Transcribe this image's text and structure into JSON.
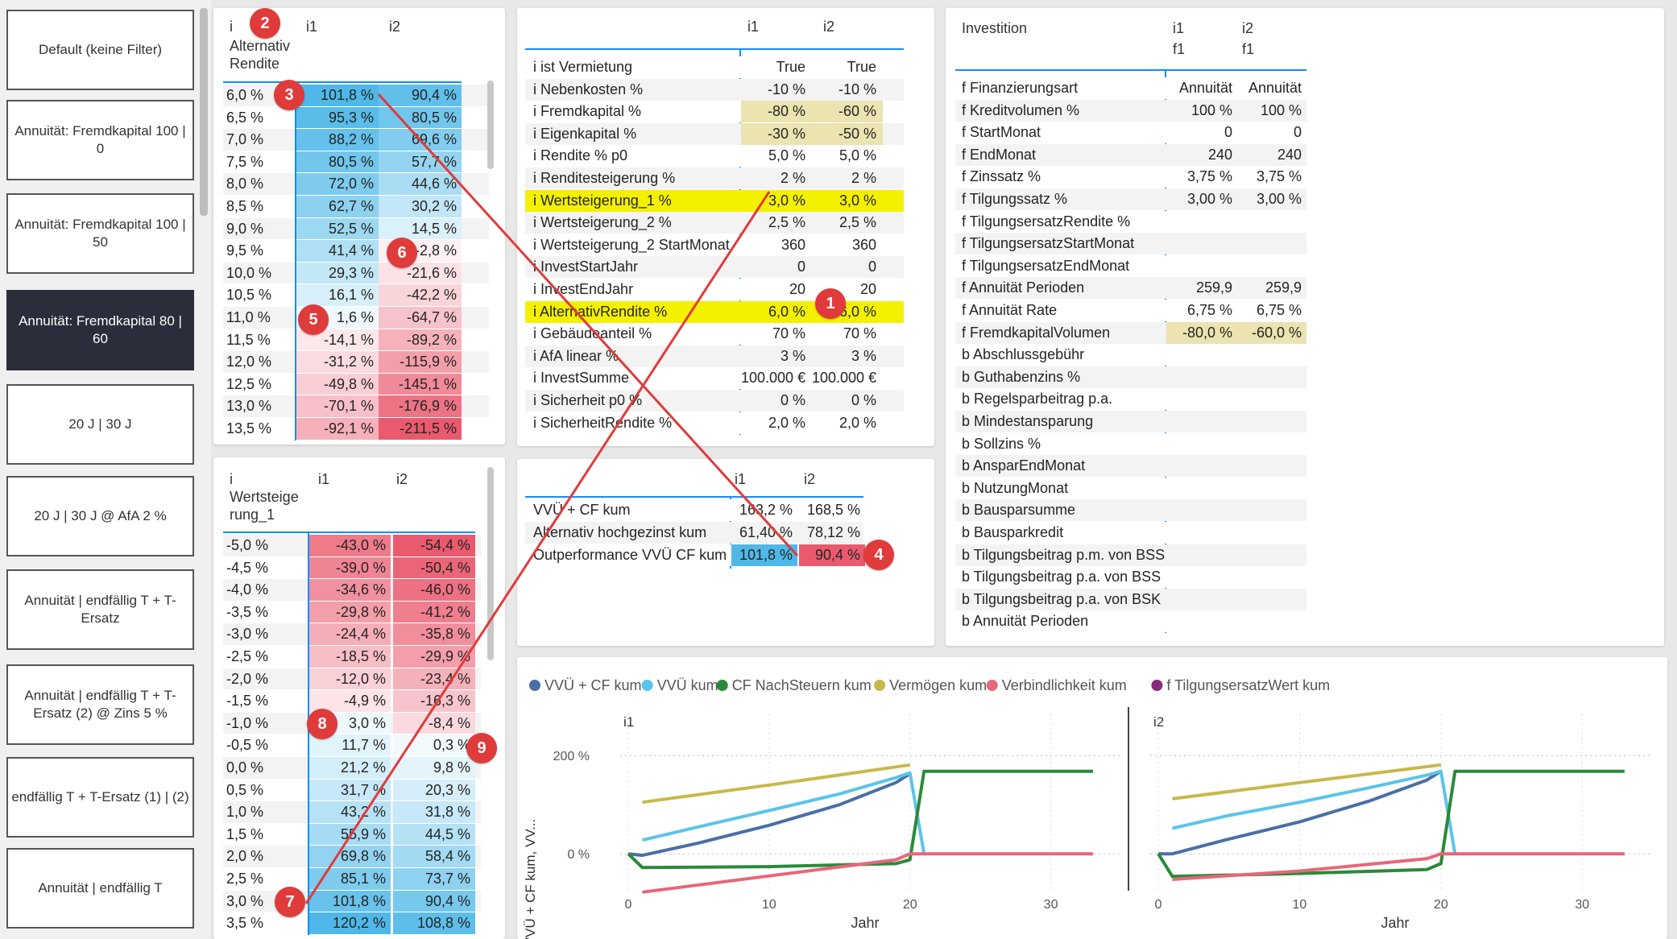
{
  "slicer": {
    "buttons": [
      {
        "label": "Default (keine Filter)",
        "selected": false
      },
      {
        "label": "Annuität: Fremdkapital 100 | 0",
        "selected": false
      },
      {
        "label": "Annuität: Fremdkapital 100 | 50",
        "selected": false
      },
      {
        "label": "Annuität: Fremdkapital 80 | 60",
        "selected": true
      },
      {
        "label": "20 J | 30 J",
        "selected": false
      },
      {
        "label": "20 J | 30 J @ AfA 2 %",
        "selected": false
      },
      {
        "label": "Annuität | endfällig T + T-Ersatz",
        "selected": false
      },
      {
        "label": "Annuität | endfällig T + T-Ersatz (2) @ Zins 5 %",
        "selected": false
      },
      {
        "label": "endfällig T + T-Ersatz (1) | (2)",
        "selected": false
      },
      {
        "label": "Annuität | endfällig T",
        "selected": false
      }
    ]
  },
  "matrix1": {
    "header_prefix": "i",
    "header_row_label": "Alternativ Rendite",
    "columns": [
      "i1",
      "i2"
    ],
    "rows": [
      {
        "label": "6,0 %",
        "i1": "101,8 %",
        "i2": "90,4 %",
        "v1": 101.8,
        "v2": 90.4
      },
      {
        "label": "6,5 %",
        "i1": "95,3 %",
        "i2": "80,5 %",
        "v1": 95.3,
        "v2": 80.5
      },
      {
        "label": "7,0 %",
        "i1": "88,2 %",
        "i2": "69,6 %",
        "v1": 88.2,
        "v2": 69.6
      },
      {
        "label": "7,5 %",
        "i1": "80,5 %",
        "i2": "57,7 %",
        "v1": 80.5,
        "v2": 57.7
      },
      {
        "label": "8,0 %",
        "i1": "72,0 %",
        "i2": "44,6 %",
        "v1": 72.0,
        "v2": 44.6
      },
      {
        "label": "8,5 %",
        "i1": "62,7 %",
        "i2": "30,2 %",
        "v1": 62.7,
        "v2": 30.2
      },
      {
        "label": "9,0 %",
        "i1": "52,5 %",
        "i2": "14,5 %",
        "v1": 52.5,
        "v2": 14.5
      },
      {
        "label": "9,5 %",
        "i1": "41,4 %",
        "i2": "-2,8 %",
        "v1": 41.4,
        "v2": -2.8
      },
      {
        "label": "10,0 %",
        "i1": "29,3 %",
        "i2": "-21,6 %",
        "v1": 29.3,
        "v2": -21.6
      },
      {
        "label": "10,5 %",
        "i1": "16,1 %",
        "i2": "-42,2 %",
        "v1": 16.1,
        "v2": -42.2
      },
      {
        "label": "11,0 %",
        "i1": "1,6 %",
        "i2": "-64,7 %",
        "v1": 1.6,
        "v2": -64.7
      },
      {
        "label": "11,5 %",
        "i1": "-14,1 %",
        "i2": "-89,2 %",
        "v1": -14.1,
        "v2": -89.2
      },
      {
        "label": "12,0 %",
        "i1": "-31,2 %",
        "i2": "-115,9 %",
        "v1": -31.2,
        "v2": -115.9
      },
      {
        "label": "12,5 %",
        "i1": "-49,8 %",
        "i2": "-145,1 %",
        "v1": -49.8,
        "v2": -145.1
      },
      {
        "label": "13,0 %",
        "i1": "-70,1 %",
        "i2": "-176,9 %",
        "v1": -70.1,
        "v2": -176.9
      },
      {
        "label": "13,5 %",
        "i1": "-92,1 %",
        "i2": "-211,5 %",
        "v1": -92.1,
        "v2": -211.5
      }
    ]
  },
  "matrix2": {
    "header_prefix": "i",
    "header_row_label": "Wertsteige rung_1",
    "columns": [
      "i1",
      "i2"
    ],
    "rows": [
      {
        "label": "-5,0 %",
        "i1": "-43,0 %",
        "i2": "-54,4 %",
        "v1": -43.0,
        "v2": -54.4
      },
      {
        "label": "-4,5 %",
        "i1": "-39,0 %",
        "i2": "-50,4 %",
        "v1": -39.0,
        "v2": -50.4
      },
      {
        "label": "-4,0 %",
        "i1": "-34,6 %",
        "i2": "-46,0 %",
        "v1": -34.6,
        "v2": -46.0
      },
      {
        "label": "-3,5 %",
        "i1": "-29,8 %",
        "i2": "-41,2 %",
        "v1": -29.8,
        "v2": -41.2
      },
      {
        "label": "-3,0 %",
        "i1": "-24,4 %",
        "i2": "-35,8 %",
        "v1": -24.4,
        "v2": -35.8
      },
      {
        "label": "-2,5 %",
        "i1": "-18,5 %",
        "i2": "-29,9 %",
        "v1": -18.5,
        "v2": -29.9
      },
      {
        "label": "-2,0 %",
        "i1": "-12,0 %",
        "i2": "-23,4 %",
        "v1": -12.0,
        "v2": -23.4
      },
      {
        "label": "-1,5 %",
        "i1": "-4,9 %",
        "i2": "-16,3 %",
        "v1": -4.9,
        "v2": -16.3
      },
      {
        "label": "-1,0 %",
        "i1": "3,0 %",
        "i2": "-8,4 %",
        "v1": 3.0,
        "v2": -8.4
      },
      {
        "label": "-0,5 %",
        "i1": "11,7 %",
        "i2": "0,3 %",
        "v1": 11.7,
        "v2": 0.3
      },
      {
        "label": "0,0 %",
        "i1": "21,2 %",
        "i2": "9,8 %",
        "v1": 21.2,
        "v2": 9.8
      },
      {
        "label": "0,5 %",
        "i1": "31,7 %",
        "i2": "20,3 %",
        "v1": 31.7,
        "v2": 20.3
      },
      {
        "label": "1,0 %",
        "i1": "43,2 %",
        "i2": "31,8 %",
        "v1": 43.2,
        "v2": 31.8
      },
      {
        "label": "1,5 %",
        "i1": "55,9 %",
        "i2": "44,5 %",
        "v1": 55.9,
        "v2": 44.5
      },
      {
        "label": "2,0 %",
        "i1": "69,8 %",
        "i2": "58,4 %",
        "v1": 69.8,
        "v2": 58.4
      },
      {
        "label": "2,5 %",
        "i1": "85,1 %",
        "i2": "73,7 %",
        "v1": 85.1,
        "v2": 73.7
      },
      {
        "label": "3,0 %",
        "i1": "101,8 %",
        "i2": "90,4 %",
        "v1": 101.8,
        "v2": 90.4
      },
      {
        "label": "3,5 %",
        "i1": "120,2 %",
        "i2": "108,8 %",
        "v1": 120.2,
        "v2": 108.8
      }
    ]
  },
  "params": {
    "columns": [
      "i1",
      "i2"
    ],
    "rows": [
      {
        "label": "i ist Vermietung",
        "i1": "True",
        "i2": "True",
        "hl": ""
      },
      {
        "label": "i Nebenkosten %",
        "i1": "-10 %",
        "i2": "-10 %",
        "hl": ""
      },
      {
        "label": "i Fremdkapital %",
        "i1": "-80 %",
        "i2": "-60 %",
        "hl": "cells"
      },
      {
        "label": "i Eigenkapital %",
        "i1": "-30 %",
        "i2": "-50 %",
        "hl": "cells"
      },
      {
        "label": "i Rendite % p0",
        "i1": "5,0 %",
        "i2": "5,0 %",
        "hl": ""
      },
      {
        "label": "i Renditesteigerung %",
        "i1": "2 %",
        "i2": "2 %",
        "hl": ""
      },
      {
        "label": "i Wertsteigerung_1 %",
        "i1": "3,0 %",
        "i2": "3,0 %",
        "hl": "row"
      },
      {
        "label": "i Wertsteigerung_2 %",
        "i1": "2,5 %",
        "i2": "2,5 %",
        "hl": ""
      },
      {
        "label": "i Wertsteigerung_2 StartMonat",
        "i1": "360",
        "i2": "360",
        "hl": ""
      },
      {
        "label": "i InvestStartJahr",
        "i1": "0",
        "i2": "0",
        "hl": ""
      },
      {
        "label": "i InvestEndJahr",
        "i1": "20",
        "i2": "20",
        "hl": ""
      },
      {
        "label": "i AlternativRendite %",
        "i1": "6,0 %",
        "i2": "6,0 %",
        "hl": "row"
      },
      {
        "label": "i Gebäudeanteil %",
        "i1": "70 %",
        "i2": "70 %",
        "hl": ""
      },
      {
        "label": "i AfA linear %",
        "i1": "3 %",
        "i2": "3 %",
        "hl": ""
      },
      {
        "label": "i InvestSumme",
        "i1": "100.000 €",
        "i2": "100.000 €",
        "hl": ""
      },
      {
        "label": "i Sicherheit p0 %",
        "i1": "0 %",
        "i2": "0 %",
        "hl": ""
      },
      {
        "label": "i SicherheitRendite %",
        "i1": "2,0 %",
        "i2": "2,0 %",
        "hl": ""
      }
    ]
  },
  "financing": {
    "title": "Investition",
    "columns": [
      "i1",
      "i2"
    ],
    "subcolumns": [
      "f1",
      "f1"
    ],
    "rows": [
      {
        "label": "f Finanzierungsart",
        "i1": "Annuität",
        "i2": "Annuität",
        "hl": false
      },
      {
        "label": "f Kreditvolumen %",
        "i1": "100 %",
        "i2": "100 %",
        "hl": false
      },
      {
        "label": "f StartMonat",
        "i1": "0",
        "i2": "0",
        "hl": false
      },
      {
        "label": "f EndMonat",
        "i1": "240",
        "i2": "240",
        "hl": false
      },
      {
        "label": "f Zinssatz %",
        "i1": "3,75 %",
        "i2": "3,75 %",
        "hl": false
      },
      {
        "label": "f Tilgungssatz %",
        "i1": "3,00 %",
        "i2": "3,00 %",
        "hl": false
      },
      {
        "label": "f TilgungsersatzRendite %",
        "i1": "",
        "i2": "",
        "hl": false
      },
      {
        "label": "f TilgungsersatzStartMonat",
        "i1": "",
        "i2": "",
        "hl": false
      },
      {
        "label": "f TilgungsersatzEndMonat",
        "i1": "",
        "i2": "",
        "hl": false
      },
      {
        "label": "f Annuität Perioden",
        "i1": "259,9",
        "i2": "259,9",
        "hl": false
      },
      {
        "label": "f Annuität Rate",
        "i1": "6,75 %",
        "i2": "6,75 %",
        "hl": false
      },
      {
        "label": "f FremdkapitalVolumen",
        "i1": "-80,0 %",
        "i2": "-60,0 %",
        "hl": true
      },
      {
        "label": "b Abschlussgebühr",
        "i1": "",
        "i2": "",
        "hl": false
      },
      {
        "label": "b Guthabenzins %",
        "i1": "",
        "i2": "",
        "hl": false
      },
      {
        "label": "b Regelsparbeitrag p.a.",
        "i1": "",
        "i2": "",
        "hl": false
      },
      {
        "label": "b Mindestansparung",
        "i1": "",
        "i2": "",
        "hl": false
      },
      {
        "label": "b Sollzins %",
        "i1": "",
        "i2": "",
        "hl": false
      },
      {
        "label": "b AnsparEndMonat",
        "i1": "",
        "i2": "",
        "hl": false
      },
      {
        "label": "b NutzungMonat",
        "i1": "",
        "i2": "",
        "hl": false
      },
      {
        "label": "b Bausparsumme",
        "i1": "",
        "i2": "",
        "hl": false
      },
      {
        "label": "b Bausparkredit",
        "i1": "",
        "i2": "",
        "hl": false
      },
      {
        "label": "b Tilgungsbeitrag p.m. von BSS",
        "i1": "",
        "i2": "",
        "hl": false
      },
      {
        "label": "b Tilgungsbeitrag p.a. von BSS",
        "i1": "",
        "i2": "",
        "hl": false
      },
      {
        "label": "b Tilgungsbeitrag p.a. von BSK",
        "i1": "",
        "i2": "",
        "hl": false
      },
      {
        "label": "b Annuität Perioden",
        "i1": "",
        "i2": "",
        "hl": false
      }
    ]
  },
  "summary": {
    "columns": [
      "i1",
      "i2"
    ],
    "rows": [
      {
        "label": "VVÜ + CF kum",
        "i1": "163,2 %",
        "i2": "168,5 %",
        "hl": false
      },
      {
        "label": "Alternativ hochgezinst kum",
        "i1": "61,40 %",
        "i2": "78,12 %",
        "hl": false
      },
      {
        "label": "Outperformance VVÜ CF kum",
        "i1": "101,8 %",
        "i2": "90,4 %",
        "hl": true
      }
    ]
  },
  "badges": [
    "1",
    "2",
    "3",
    "4",
    "5",
    "6",
    "7",
    "8",
    "9"
  ],
  "colors": {
    "accent_blue": "#118dff",
    "yellow_highlight": "#f3f000",
    "tan_highlight": "#ebe3b0",
    "pos_max": "#4fb8e8",
    "neg_max": "#ea5a6e",
    "badge_red": "#e03b3b",
    "arrow_red": "#e03b3b"
  },
  "chart_data": {
    "type": "line",
    "legend": [
      {
        "name": "VVÜ + CF kum",
        "color": "#4a6fa5"
      },
      {
        "name": "VVÜ kum",
        "color": "#5bc4ea"
      },
      {
        "name": "CF NachSteuern kum",
        "color": "#2a8a3a"
      },
      {
        "name": "Vermögen kum",
        "color": "#c8b84a"
      },
      {
        "name": "Verbindlichkeit kum",
        "color": "#e8667a"
      },
      {
        "name": "f TilgungsersatzWert kum",
        "color": "#8a2a7a"
      }
    ],
    "ylabel": "VVÜ + CF kum, VV...",
    "xlabel": "Jahr",
    "y_ticks": [
      "200 %",
      "0 %"
    ],
    "x_ticks": [
      "0",
      "10",
      "20",
      "30"
    ],
    "xlim": [
      0,
      35
    ],
    "ylim": [
      -75,
      220
    ],
    "panels": [
      {
        "title": "i1",
        "series": [
          {
            "name": "VVÜ + CF kum",
            "x": [
              0,
              1,
              5,
              10,
              15,
              19,
              20
            ],
            "y": [
              0,
              -3,
              22,
              58,
              100,
              145,
              163
            ]
          },
          {
            "name": "VVÜ kum",
            "x": [
              1,
              5,
              10,
              15,
              19,
              20,
              21
            ],
            "y": [
              28,
              55,
              88,
              122,
              155,
              165,
              0
            ]
          },
          {
            "name": "CF NachSteuern kum",
            "x": [
              0,
              1,
              10,
              19,
              20,
              21,
              33
            ],
            "y": [
              0,
              -28,
              -26,
              -20,
              -12,
              168,
              168
            ]
          },
          {
            "name": "Vermögen kum",
            "x": [
              1,
              10,
              20
            ],
            "y": [
              105,
              140,
              181
            ]
          },
          {
            "name": "Verbindlichkeit kum",
            "x": [
              1,
              10,
              19,
              20,
              33
            ],
            "y": [
              -78,
              -45,
              -12,
              0,
              0
            ]
          }
        ]
      },
      {
        "title": "i2",
        "series": [
          {
            "name": "VVÜ + CF kum",
            "x": [
              0,
              1,
              5,
              10,
              15,
              19,
              20
            ],
            "y": [
              0,
              0,
              30,
              65,
              108,
              150,
              168
            ]
          },
          {
            "name": "VVÜ kum",
            "x": [
              1,
              5,
              10,
              15,
              19,
              20,
              21
            ],
            "y": [
              52,
              78,
              105,
              135,
              160,
              168,
              0
            ]
          },
          {
            "name": "CF NachSteuern kum",
            "x": [
              0,
              1,
              10,
              19,
              20,
              21,
              33
            ],
            "y": [
              0,
              -46,
              -40,
              -32,
              -20,
              168,
              168
            ]
          },
          {
            "name": "Vermögen kum",
            "x": [
              1,
              10,
              20
            ],
            "y": [
              112,
              145,
              181
            ]
          },
          {
            "name": "Verbindlichkeit kum",
            "x": [
              1,
              10,
              19,
              20,
              33
            ],
            "y": [
              -52,
              -35,
              -10,
              0,
              0
            ]
          }
        ]
      }
    ]
  }
}
